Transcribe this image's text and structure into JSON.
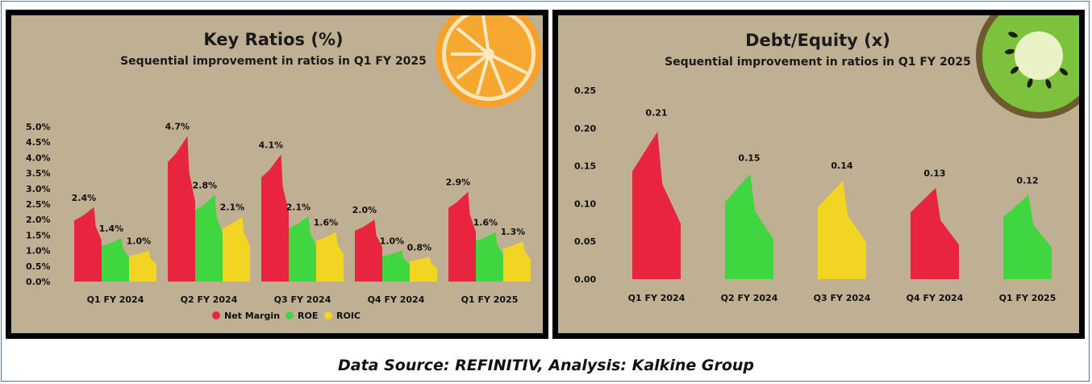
{
  "footer": "Data Source: REFINITIV, Analysis: Kalkine Group",
  "chart_data": [
    {
      "type": "bar",
      "title": "Key Ratios (%)",
      "subtitle": "Sequential improvement in ratios in Q1 FY 2025",
      "categories": [
        "Q1 FY 2024",
        "Q2 FY 2024",
        "Q3 FY 2024",
        "Q4 FY 2024",
        "Q1 FY 2025"
      ],
      "series": [
        {
          "name": "Net Margin",
          "color": "#e8243e",
          "values": [
            2.4,
            4.7,
            4.1,
            2.0,
            2.9
          ],
          "labels": [
            "2.4%",
            "4.7%",
            "4.1%",
            "2.0%",
            "2.9%"
          ]
        },
        {
          "name": "ROE",
          "color": "#3fd63f",
          "values": [
            1.4,
            2.8,
            2.1,
            1.0,
            1.6
          ],
          "labels": [
            "1.4%",
            "2.8%",
            "2.1%",
            "1.0%",
            "1.6%"
          ]
        },
        {
          "name": "ROIC",
          "color": "#f2d423",
          "values": [
            1.0,
            2.1,
            1.6,
            0.8,
            1.3
          ],
          "labels": [
            "1.0%",
            "2.1%",
            "1.6%",
            "0.8%",
            "1.3%"
          ]
        }
      ],
      "yticks": [
        "0.0%",
        "0.5%",
        "1.0%",
        "1.5%",
        "2.0%",
        "2.5%",
        "3.0%",
        "3.5%",
        "4.0%",
        "4.5%",
        "5.0%"
      ],
      "ylim": [
        0,
        5.0
      ],
      "legend": "bottom"
    },
    {
      "type": "bar",
      "title": "Debt/Equity (x)",
      "subtitle": "Sequential improvement in ratios in Q1 FY 2025",
      "categories": [
        "Q1 FY 2024",
        "Q2 FY 2024",
        "Q3 FY 2024",
        "Q4 FY 2024",
        "Q1 FY 2025"
      ],
      "values": [
        0.21,
        0.15,
        0.14,
        0.13,
        0.12
      ],
      "labels": [
        "0.21",
        "0.15",
        "0.14",
        "0.13",
        "0.12"
      ],
      "colors": [
        "#e8243e",
        "#3fd63f",
        "#f2d423",
        "#e8243e",
        "#3fd63f"
      ],
      "yticks": [
        "0.00",
        "0.05",
        "0.10",
        "0.15",
        "0.20",
        "0.25"
      ],
      "ylim": [
        0,
        0.25
      ]
    }
  ]
}
